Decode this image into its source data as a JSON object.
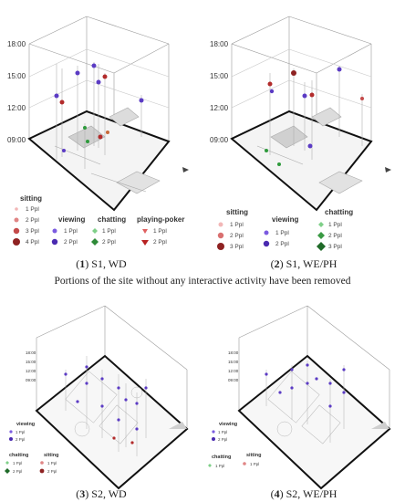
{
  "note": "Portions of the site without any interactive activity have been removed",
  "panels": [
    {
      "caption_num": "1",
      "caption_text": "S1, WD",
      "ticks": [
        "18:00",
        "15:00",
        "12:00",
        "09:00"
      ],
      "legend": {
        "sitting": {
          "title": "sitting",
          "items": [
            "1 Ppl",
            "2 Ppl",
            "3 Ppl",
            "4 Ppl"
          ]
        },
        "viewing": {
          "title": "viewing",
          "items": [
            "1 Ppl",
            "2 Ppl"
          ]
        },
        "chatting": {
          "title": "chatting",
          "items": [
            "1 Ppl",
            "2 Ppl"
          ]
        },
        "poker": {
          "title": "playing-poker",
          "items": [
            "1 Ppl",
            "2 Ppl"
          ]
        }
      }
    },
    {
      "caption_num": "2",
      "caption_text": "S1, WE/PH",
      "ticks": [
        "18:00",
        "15:00",
        "12:00",
        "09:00"
      ],
      "legend": {
        "sitting": {
          "title": "sitting",
          "items": [
            "1 Ppl",
            "2 Ppl",
            "3 Ppl"
          ]
        },
        "viewing": {
          "title": "viewing",
          "items": [
            "1 Ppl",
            "2 Ppl"
          ]
        },
        "chatting": {
          "title": "chatting",
          "items": [
            "1 Ppl",
            "2 Ppl",
            "3 Ppl"
          ]
        }
      }
    },
    {
      "caption_num": "3",
      "caption_text": "S2, WD",
      "ticks": [
        "18:00",
        "15:00",
        "12:00",
        "09:00"
      ],
      "legend": {
        "viewing": {
          "title": "viewing",
          "items": [
            "1 Ppl",
            "2 Ppl"
          ]
        },
        "chatting": {
          "title": "chatting",
          "items": [
            "1 Ppl",
            "2 Ppl"
          ]
        },
        "sitting": {
          "title": "sitting",
          "items": [
            "1 Ppl",
            "2 Ppl"
          ]
        }
      }
    },
    {
      "caption_num": "4",
      "caption_text": "S2, WE/PH",
      "ticks": [
        "18:00",
        "15:00",
        "12:00",
        "09:00"
      ],
      "legend": {
        "viewing": {
          "title": "viewing",
          "items": [
            "1 Ppl",
            "2 Ppl"
          ]
        },
        "chatting": {
          "title": "chatting",
          "items": [
            "1 Ppl"
          ]
        },
        "sitting": {
          "title": "sitting",
          "items": [
            "1 Ppl"
          ]
        }
      }
    }
  ],
  "colors": {
    "sitting": "#b22b2b",
    "viewing": "#5b3bc4",
    "chatting": "#2e9a3c",
    "poker": "#d63a3a",
    "floor": "#333333"
  }
}
